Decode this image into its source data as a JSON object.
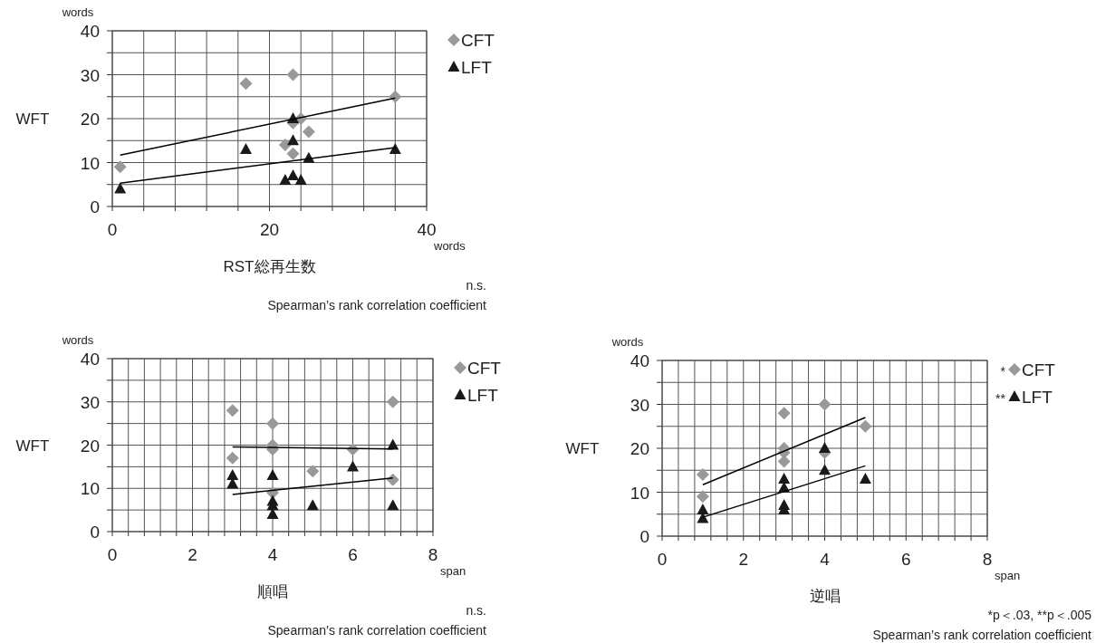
{
  "chart_data": [
    {
      "type": "scatter",
      "xlabel": "RST総再生数",
      "ylabel": "WFT",
      "grid": true,
      "legend": "top right",
      "xlim": [
        0,
        40
      ],
      "ylim": [
        0,
        40
      ],
      "xticks": [
        0,
        {
          "value": 4,
          "label": null
        },
        {
          "value": 8,
          "label": null
        },
        {
          "value": 12,
          "label": null
        },
        {
          "value": 16,
          "label": null
        },
        20,
        {
          "value": 24,
          "label": null
        },
        {
          "value": 28,
          "label": null
        },
        {
          "value": 32,
          "label": null
        },
        {
          "value": 36,
          "label": null
        },
        40
      ],
      "yticks": [
        0,
        {
          "value": 5,
          "label": null
        },
        10,
        {
          "value": 15,
          "label": null
        },
        20,
        {
          "value": 25,
          "label": null
        },
        30,
        {
          "value": 35,
          "label": null
        },
        40
      ],
      "annotations": [
        "words",
        "words",
        "n.s.",
        "Spearman’s rank correlation coefficient"
      ],
      "series": [
        {
          "name": "CFT",
          "type": "scatter",
          "marker": "diamond",
          "color": "#999999",
          "x": [
            1,
            17,
            23,
            22,
            23,
            23,
            24,
            25,
            36
          ],
          "values": [
            9,
            28,
            30,
            14,
            12,
            19,
            20,
            17,
            25
          ]
        },
        {
          "name": "LFT",
          "type": "scatter",
          "marker": "triangle",
          "color": "#1a1a1a",
          "x": [
            1,
            17,
            23,
            23,
            25,
            22,
            23,
            24,
            36
          ],
          "values": [
            4,
            13,
            20,
            15,
            11,
            6,
            7,
            6,
            13
          ]
        },
        {
          "type": "line",
          "marker": "none",
          "color": "#000000",
          "x": [
            1,
            36
          ],
          "values": [
            11.7,
            24.7
          ]
        },
        {
          "type": "line",
          "marker": "none",
          "color": "#000000",
          "x": [
            1,
            36
          ],
          "values": [
            5.3,
            13.4
          ]
        }
      ]
    },
    {
      "type": "scatter",
      "xlabel": "順唱",
      "ylabel": "WFT",
      "grid": true,
      "legend": "top right",
      "xlim": [
        0,
        8
      ],
      "ylim": [
        0,
        40
      ],
      "xticks": [
        0,
        {
          "value": 0.4,
          "label": null
        },
        {
          "value": 0.8,
          "label": null
        },
        {
          "value": 1.2,
          "label": null
        },
        {
          "value": 1.6,
          "label": null
        },
        2,
        {
          "value": 2.4,
          "label": null
        },
        {
          "value": 2.8,
          "label": null
        },
        {
          "value": 3.2,
          "label": null
        },
        {
          "value": 3.6,
          "label": null
        },
        4,
        {
          "value": 4.4,
          "label": null
        },
        {
          "value": 4.8,
          "label": null
        },
        {
          "value": 5.2,
          "label": null
        },
        {
          "value": 5.6,
          "label": null
        },
        6,
        {
          "value": 6.4,
          "label": null
        },
        {
          "value": 6.8,
          "label": null
        },
        {
          "value": 7.2,
          "label": null
        },
        {
          "value": 7.6,
          "label": null
        },
        8
      ],
      "yticks": [
        0,
        {
          "value": 5,
          "label": null
        },
        10,
        {
          "value": 15,
          "label": null
        },
        20,
        {
          "value": 25,
          "label": null
        },
        30,
        {
          "value": 35,
          "label": null
        },
        40
      ],
      "annotations": [
        "words",
        "span",
        "n.s.",
        "Spearman’s rank correlation coefficient"
      ],
      "series": [
        {
          "name": "CFT",
          "type": "scatter",
          "marker": "diamond",
          "color": "#999999",
          "x": [
            3,
            3,
            4,
            4,
            4,
            4,
            5,
            6,
            7,
            7
          ],
          "values": [
            28,
            17,
            25,
            20,
            19,
            9,
            14,
            19,
            30,
            12
          ]
        },
        {
          "name": "LFT",
          "type": "scatter",
          "marker": "triangle",
          "color": "#1a1a1a",
          "x": [
            3,
            3,
            4,
            4,
            4,
            4,
            5,
            6,
            7,
            7
          ],
          "values": [
            13,
            11,
            13,
            7,
            6,
            4,
            6,
            15,
            20,
            6
          ]
        },
        {
          "type": "line",
          "marker": "none",
          "color": "#000000",
          "x": [
            3,
            7
          ],
          "values": [
            19.6,
            19.1
          ]
        },
        {
          "type": "line",
          "marker": "none",
          "color": "#000000",
          "x": [
            3,
            7
          ],
          "values": [
            8.6,
            12.4
          ]
        }
      ]
    },
    {
      "type": "scatter",
      "xlabel": "逆唱",
      "ylabel": "WFT",
      "grid": true,
      "legend": "top right",
      "xlim": [
        0,
        8
      ],
      "ylim": [
        0,
        40
      ],
      "xticks": [
        0,
        {
          "value": 0.4,
          "label": null
        },
        {
          "value": 0.8,
          "label": null
        },
        {
          "value": 1.2,
          "label": null
        },
        {
          "value": 1.6,
          "label": null
        },
        2,
        {
          "value": 2.4,
          "label": null
        },
        {
          "value": 2.8,
          "label": null
        },
        {
          "value": 3.2,
          "label": null
        },
        {
          "value": 3.6,
          "label": null
        },
        4,
        {
          "value": 4.4,
          "label": null
        },
        {
          "value": 4.8,
          "label": null
        },
        {
          "value": 5.2,
          "label": null
        },
        {
          "value": 5.6,
          "label": null
        },
        6,
        {
          "value": 6.4,
          "label": null
        },
        {
          "value": 6.8,
          "label": null
        },
        {
          "value": 7.2,
          "label": null
        },
        {
          "value": 7.6,
          "label": null
        },
        8
      ],
      "yticks": [
        0,
        {
          "value": 5,
          "label": null
        },
        10,
        {
          "value": 15,
          "label": null
        },
        20,
        {
          "value": 25,
          "label": null
        },
        30,
        {
          "value": 35,
          "label": null
        },
        40
      ],
      "annotations": [
        "words",
        "span",
        "*",
        "**",
        "*p＜.03,  **p＜.005",
        "Spearman’s rank correlation coefficient"
      ],
      "series": [
        {
          "name": "CFT",
          "type": "scatter",
          "marker": "diamond",
          "color": "#999999",
          "x": [
            1,
            1,
            3,
            3,
            3,
            3,
            4,
            4,
            5
          ],
          "values": [
            14,
            9,
            28,
            20,
            19,
            17,
            30,
            19,
            25
          ]
        },
        {
          "name": "LFT",
          "type": "scatter",
          "marker": "triangle",
          "color": "#1a1a1a",
          "x": [
            1,
            1,
            3,
            3,
            3,
            3,
            4,
            4,
            5
          ],
          "values": [
            6,
            4,
            13,
            11,
            7,
            6,
            20,
            15,
            13
          ]
        },
        {
          "type": "line",
          "marker": "none",
          "color": "#000000",
          "x": [
            1,
            5
          ],
          "values": [
            11.7,
            27
          ]
        },
        {
          "type": "line",
          "marker": "none",
          "color": "#000000",
          "x": [
            1,
            5
          ],
          "values": [
            4.3,
            16
          ]
        }
      ]
    }
  ]
}
